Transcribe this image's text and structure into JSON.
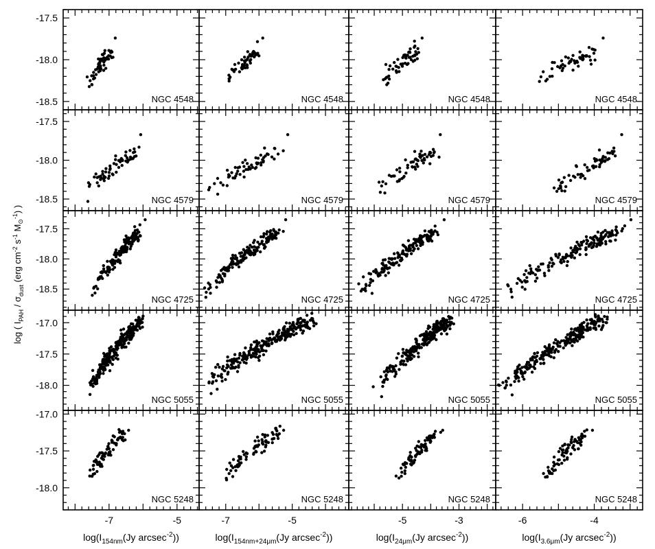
{
  "chart_data": {
    "type": "scatter",
    "layout": "5 rows (galaxies) x 4 columns (x quantities), shared axes",
    "ylabel": {
      "text": "log ( I",
      "sub1": "PAH",
      "mid1": " / σ",
      "sub2": "dust",
      "mid2": " (erg cm",
      "sup1": "-2",
      "mid3": " s",
      "sup2": "-1",
      "mid4": " M",
      "sub3": "⊙",
      "sup3": "-1",
      "tail": ") )"
    },
    "columns": [
      {
        "xlabel": {
          "pre": "log(I",
          "sub": "154nm",
          "post": "(Jy arcsec",
          "sup": "-2",
          "tail": "))"
        },
        "xlim": [
          -8.35,
          -4.35
        ],
        "xticks": [
          -7,
          -5
        ]
      },
      {
        "xlabel": {
          "pre": "log(I",
          "sub": "154nm+24μm",
          "post": "(Jy arcsec",
          "sup": "-2",
          "tail": "))"
        },
        "xlim": [
          -7.8,
          -3.3
        ],
        "xticks": [
          -7,
          -5
        ]
      },
      {
        "xlabel": {
          "pre": "log(I",
          "sub": "24μm",
          "post": "(Jy arcsec",
          "sup": "-2",
          "tail": "))"
        },
        "xlim": [
          -6.9,
          -1.7
        ],
        "xticks": [
          -5,
          -3
        ]
      },
      {
        "xlabel": {
          "pre": "log(I",
          "sub": "3.6μm",
          "post": "(Jy arcsec",
          "sup": "-2",
          "tail": "))"
        },
        "xlim": [
          -6.75,
          -2.65
        ],
        "xticks": [
          -6,
          -4
        ]
      }
    ],
    "rows": [
      {
        "galaxy": "NGC 4548",
        "ylim": [
          -18.6,
          -17.4
        ],
        "yticks": [
          -17.5,
          -18.0,
          -18.5
        ],
        "trend": {
          "y_lo": -18.3,
          "y_hi": -17.9,
          "n": 55,
          "outlier": -17.74,
          "x": [
            [
              -7.6,
              -6.9
            ],
            [
              -6.95,
              -6.0
            ],
            [
              -5.65,
              -4.45
            ],
            [
              -5.6,
              -3.95
            ]
          ]
        }
      },
      {
        "galaxy": "NGC 4579",
        "ylim": [
          -18.65,
          -17.35
        ],
        "yticks": [
          -17.5,
          -18.0,
          -18.5
        ],
        "trend": {
          "y_lo": -18.5,
          "y_hi": -17.9,
          "n": 60,
          "outlier": -17.67,
          "x": [
            [
              -7.75,
              -6.25
            ],
            [
              -7.6,
              -5.4
            ],
            [
              -5.9,
              -3.9
            ],
            [
              -5.25,
              -3.45
            ]
          ]
        }
      },
      {
        "galaxy": "NGC 4725",
        "ylim": [
          -18.85,
          -17.2
        ],
        "yticks": [
          -17.5,
          -18.0,
          -18.5
        ],
        "trend": {
          "y_lo": -18.65,
          "y_hi": -17.55,
          "n": 160,
          "outlier": -17.35,
          "x": [
            [
              -7.45,
              -6.1
            ],
            [
              -7.55,
              -5.45
            ],
            [
              -6.55,
              -3.85
            ],
            [
              -6.45,
              -3.35
            ]
          ]
        }
      },
      {
        "galaxy": "NGC 5055",
        "ylim": [
          -18.4,
          -16.8
        ],
        "yticks": [
          -17.0,
          -17.5,
          -18.0
        ],
        "trend": {
          "y_lo": -18.15,
          "y_hi": -16.95,
          "n": 260,
          "outlier": null,
          "x": [
            [
              -7.55,
              -6.05
            ],
            [
              -7.6,
              -4.45
            ],
            [
              -5.85,
              -3.3
            ],
            [
              -6.5,
              -3.75
            ]
          ]
        }
      },
      {
        "galaxy": "NGC 5248",
        "ylim": [
          -18.3,
          -16.95
        ],
        "yticks": [
          -17.0,
          -17.5,
          -18.0
        ],
        "trend": {
          "y_lo": -17.95,
          "y_hi": -17.25,
          "n": 75,
          "outlier": -17.22,
          "x": [
            [
              -7.6,
              -6.55
            ],
            [
              -7.05,
              -5.45
            ],
            [
              -5.2,
              -3.75
            ],
            [
              -5.45,
              -4.2
            ]
          ]
        }
      }
    ],
    "grid": false,
    "legend": "none"
  }
}
